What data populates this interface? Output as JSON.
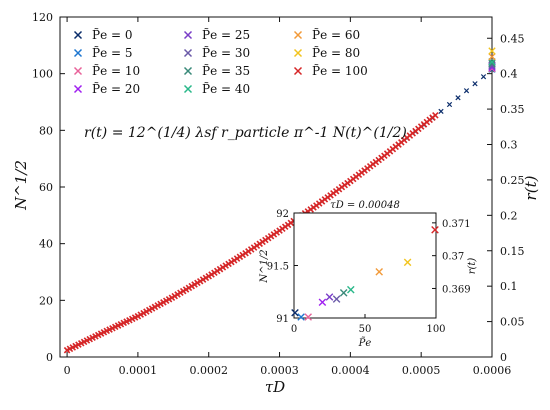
{
  "chart_data": [
    {
      "type": "scatter",
      "xlabel": "τD",
      "ylabel": "N^1/2",
      "y2label": "r(t)",
      "xlim": [
        -1e-05,
        0.0006
      ],
      "ylim": [
        0,
        120
      ],
      "y2lim": [
        0,
        0.48
      ],
      "x_ticks": [
        0,
        0.0001,
        0.0002,
        0.0003,
        0.0004,
        0.0005,
        0.0006
      ],
      "x_tick_labels": [
        "0",
        "0.0001",
        "0.0002",
        "0.0003",
        "0.0004",
        "0.0005",
        "0.0006"
      ],
      "y_ticks": [
        0,
        20,
        40,
        60,
        80,
        100,
        120
      ],
      "y_tick_labels": [
        "0",
        "20",
        "40",
        "60",
        "80",
        "100",
        "120"
      ],
      "y2_ticks": [
        0,
        0.05,
        0.1,
        0.15,
        0.2,
        0.25,
        0.3,
        0.35,
        0.4,
        0.45
      ],
      "y2_tick_labels": [
        "0",
        "0.05",
        "0.1",
        "0.15",
        "0.2",
        "0.25",
        "0.3",
        "0.35",
        "0.4",
        "0.45"
      ],
      "annotation": "r(t) = 12^(1/4) λsf r_particle π^-1 N(t)^(1/2)",
      "legend_position": "top-left",
      "grid": false,
      "series": [
        {
          "name": "P̃e = 0",
          "color": "#0b2d6b",
          "x": [
            0,
            5e-05,
            0.0001,
            0.00015,
            0.0002,
            0.00025,
            0.0003,
            0.00035,
            0.0004,
            0.00045,
            0.0005,
            0.00055,
            0.0006
          ],
          "y": [
            2.4,
            8.5,
            14.4,
            21.2,
            28.5,
            36.3,
            44.6,
            53.1,
            62.1,
            71.4,
            81.1,
            91.1,
            101.4
          ]
        },
        {
          "name": "P̃e = 5",
          "color": "#1f77d0",
          "x": [
            0.0006
          ],
          "y": [
            101.6
          ]
        },
        {
          "name": "P̃e = 10",
          "color": "#e8639a",
          "x": [
            0.0006
          ],
          "y": [
            101.8
          ]
        },
        {
          "name": "P̃e = 20",
          "color": "#a020f0",
          "x": [
            0.0006
          ],
          "y": [
            102.2
          ]
        },
        {
          "name": "P̃e = 25",
          "color": "#7a3ec8",
          "x": [
            0.0006
          ],
          "y": [
            102.6
          ]
        },
        {
          "name": "P̃e = 30",
          "color": "#6a5aa8",
          "x": [
            0.0006
          ],
          "y": [
            103.0
          ]
        },
        {
          "name": "P̃e = 35",
          "color": "#3a8a7a",
          "x": [
            0.0006
          ],
          "y": [
            103.6
          ]
        },
        {
          "name": "P̃e = 40",
          "color": "#2ab88a",
          "x": [
            0.0006
          ],
          "y": [
            104.2
          ]
        },
        {
          "name": "P̃e = 60",
          "color": "#f29a3a",
          "x": [
            0.0006
          ],
          "y": [
            106.0
          ]
        },
        {
          "name": "P̃e = 80",
          "color": "#f2c41e",
          "x": [
            0.0006
          ],
          "y": [
            108.0
          ]
        },
        {
          "name": "P̃e = 100",
          "color": "#d62728",
          "x": [
            0,
            5e-05,
            0.0001,
            0.00015,
            0.0002,
            0.00025,
            0.0003,
            0.00035,
            0.0004,
            0.00045,
            0.00052
          ],
          "y": [
            2.4,
            8.5,
            14.4,
            21.2,
            28.5,
            36.3,
            44.6,
            53.1,
            62.1,
            71.4,
            85.3
          ]
        }
      ]
    },
    {
      "type": "scatter",
      "title": "τD = 0.00048",
      "xlabel": "P̃e",
      "ylabel": "N^1/2",
      "y2label": "r(t)",
      "xlim": [
        0,
        100
      ],
      "ylim": [
        91,
        92
      ],
      "y2lim": [
        0.3681,
        0.3713
      ],
      "x_ticks": [
        0,
        50,
        100
      ],
      "x_tick_labels": [
        "0",
        "50",
        "100"
      ],
      "y_ticks": [
        91,
        91.5,
        92
      ],
      "y_tick_labels": [
        "91",
        "91.5",
        "92"
      ],
      "y2_ticks": [
        0.369,
        0.37,
        0.371
      ],
      "y2_tick_labels": [
        "0.369",
        "0.37",
        "0.371"
      ],
      "points": [
        {
          "pe": 0,
          "y": 91.05,
          "color": "#0b2d6b"
        },
        {
          "pe": 5,
          "y": 90.99,
          "color": "#1f77d0"
        },
        {
          "pe": 10,
          "y": 91.0,
          "color": "#e8639a"
        },
        {
          "pe": 20,
          "y": 91.15,
          "color": "#a020f0"
        },
        {
          "pe": 25,
          "y": 91.2,
          "color": "#7a3ec8"
        },
        {
          "pe": 30,
          "y": 91.18,
          "color": "#6a5aa8"
        },
        {
          "pe": 35,
          "y": 91.24,
          "color": "#3a8a7a"
        },
        {
          "pe": 40,
          "y": 91.27,
          "color": "#2ab88a"
        },
        {
          "pe": 60,
          "y": 91.44,
          "color": "#f29a3a"
        },
        {
          "pe": 80,
          "y": 91.53,
          "color": "#f2c41e"
        },
        {
          "pe": 100,
          "y": 91.84,
          "color": "#d62728"
        }
      ]
    }
  ]
}
